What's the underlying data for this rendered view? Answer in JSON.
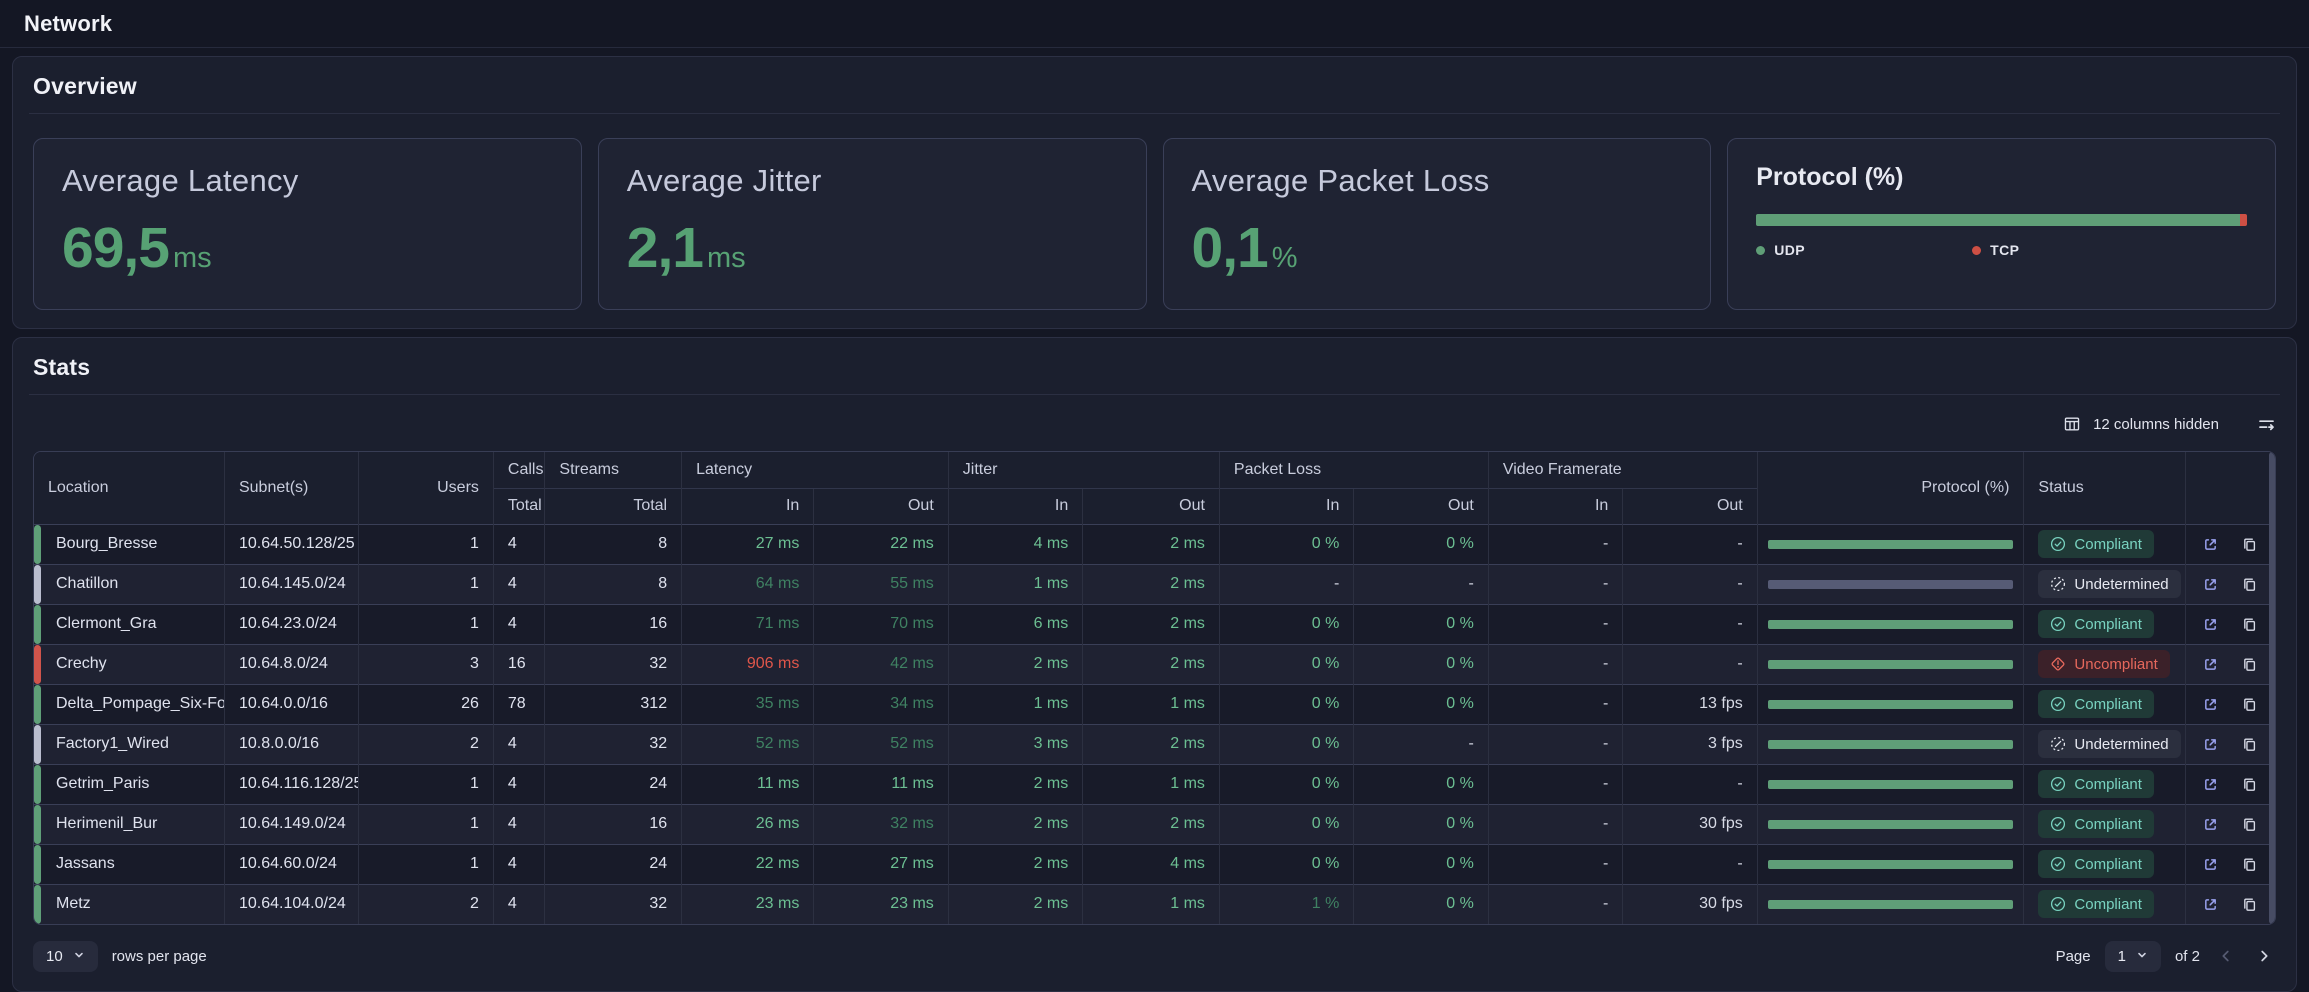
{
  "page": {
    "title": "Network"
  },
  "overview": {
    "title": "Overview",
    "metric_cards": [
      {
        "label": "Average Latency",
        "value": "69,5",
        "unit": "ms"
      },
      {
        "label": "Average Jitter",
        "value": "2,1",
        "unit": "ms"
      },
      {
        "label": "Average Packet Loss",
        "value": "0,1",
        "unit": "%"
      }
    ],
    "protocol_card": {
      "title": "Protocol (%)",
      "chart_data": {
        "type": "bar",
        "orientation": "horizontal-stacked-percentage",
        "series": [
          {
            "name": "UDP",
            "value": 98.5,
            "color": "#5f9e77"
          },
          {
            "name": "TCP",
            "value": 1.5,
            "color": "#cd4f44"
          }
        ],
        "legend_position": "bottom"
      }
    }
  },
  "stats": {
    "title": "Stats",
    "toolbar": {
      "columns_hidden": "12 columns hidden"
    },
    "table": {
      "header": {
        "groups": [
          "Location",
          "Subnet(s)",
          "Users",
          "Calls",
          "Streams",
          "Latency",
          "Jitter",
          "Packet Loss",
          "Video Framerate",
          "Protocol (%)",
          "Status"
        ],
        "sub": {
          "total": "Total",
          "in": "In",
          "out": "Out"
        }
      },
      "rows": [
        {
          "location": "Bourg_Bresse",
          "status_type": "compliant",
          "subnet": "10.64.50.128/25",
          "users": "1",
          "calls": "4",
          "streams": "8",
          "metrics": [
            [
              "27 ms",
              "ok"
            ],
            [
              "22 ms",
              "ok"
            ],
            [
              "4 ms",
              "ok"
            ],
            [
              "2 ms",
              "ok"
            ],
            [
              "0 %",
              "ok"
            ],
            [
              "0 %",
              "ok"
            ],
            [
              "-",
              "na"
            ],
            [
              "-",
              "na"
            ]
          ],
          "protocol_bar": "green",
          "status": "Compliant"
        },
        {
          "location": "Chatillon",
          "status_type": "undetermined",
          "subnet": "10.64.145.0/24",
          "users": "1",
          "calls": "4",
          "streams": "8",
          "metrics": [
            [
              "64 ms",
              "warn"
            ],
            [
              "55 ms",
              "warn"
            ],
            [
              "1 ms",
              "ok"
            ],
            [
              "2 ms",
              "ok"
            ],
            [
              "-",
              "na"
            ],
            [
              "-",
              "na"
            ],
            [
              "-",
              "na"
            ],
            [
              "-",
              "na"
            ]
          ],
          "protocol_bar": "gray",
          "status": "Undetermined"
        },
        {
          "location": "Clermont_Gra",
          "status_type": "compliant",
          "subnet": "10.64.23.0/24",
          "users": "1",
          "calls": "4",
          "streams": "16",
          "metrics": [
            [
              "71 ms",
              "warn"
            ],
            [
              "70 ms",
              "warn"
            ],
            [
              "6 ms",
              "ok"
            ],
            [
              "2 ms",
              "ok"
            ],
            [
              "0 %",
              "ok"
            ],
            [
              "0 %",
              "ok"
            ],
            [
              "-",
              "na"
            ],
            [
              "-",
              "na"
            ]
          ],
          "protocol_bar": "green",
          "status": "Compliant"
        },
        {
          "location": "Crechy",
          "status_type": "uncompliant",
          "subnet": "10.64.8.0/24",
          "users": "3",
          "calls": "16",
          "streams": "32",
          "metrics": [
            [
              "906 ms",
              "bad"
            ],
            [
              "42 ms",
              "warn"
            ],
            [
              "2 ms",
              "ok"
            ],
            [
              "2 ms",
              "ok"
            ],
            [
              "0 %",
              "ok"
            ],
            [
              "0 %",
              "ok"
            ],
            [
              "-",
              "na"
            ],
            [
              "-",
              "na"
            ]
          ],
          "protocol_bar": "green",
          "status": "Uncompliant"
        },
        {
          "location": "Delta_Pompage_Six-Four",
          "status_type": "compliant",
          "subnet": "10.64.0.0/16",
          "users": "26",
          "calls": "78",
          "streams": "312",
          "metrics": [
            [
              "35 ms",
              "warn"
            ],
            [
              "34 ms",
              "warn"
            ],
            [
              "1 ms",
              "ok"
            ],
            [
              "1 ms",
              "ok"
            ],
            [
              "0 %",
              "ok"
            ],
            [
              "0 %",
              "ok"
            ],
            [
              "-",
              "na"
            ],
            [
              "13 fps",
              "plain"
            ]
          ],
          "protocol_bar": "green",
          "status": "Compliant"
        },
        {
          "location": "Factory1_Wired",
          "status_type": "undetermined",
          "subnet": "10.8.0.0/16",
          "users": "2",
          "calls": "4",
          "streams": "32",
          "metrics": [
            [
              "52 ms",
              "warn"
            ],
            [
              "52 ms",
              "warn"
            ],
            [
              "3 ms",
              "ok"
            ],
            [
              "2 ms",
              "ok"
            ],
            [
              "0 %",
              "ok"
            ],
            [
              "-",
              "na"
            ],
            [
              "-",
              "na"
            ],
            [
              "3 fps",
              "plain"
            ]
          ],
          "protocol_bar": "green",
          "status": "Undetermined"
        },
        {
          "location": "Getrim_Paris",
          "status_type": "compliant",
          "subnet": "10.64.116.128/25",
          "users": "1",
          "calls": "4",
          "streams": "24",
          "metrics": [
            [
              "11 ms",
              "ok"
            ],
            [
              "11 ms",
              "ok"
            ],
            [
              "2 ms",
              "ok"
            ],
            [
              "1 ms",
              "ok"
            ],
            [
              "0 %",
              "ok"
            ],
            [
              "0 %",
              "ok"
            ],
            [
              "-",
              "na"
            ],
            [
              "-",
              "na"
            ]
          ],
          "protocol_bar": "green",
          "status": "Compliant"
        },
        {
          "location": "Herimenil_Bur",
          "status_type": "compliant",
          "subnet": "10.64.149.0/24",
          "users": "1",
          "calls": "4",
          "streams": "16",
          "metrics": [
            [
              "26 ms",
              "ok"
            ],
            [
              "32 ms",
              "warn"
            ],
            [
              "2 ms",
              "ok"
            ],
            [
              "2 ms",
              "ok"
            ],
            [
              "0 %",
              "ok"
            ],
            [
              "0 %",
              "ok"
            ],
            [
              "-",
              "na"
            ],
            [
              "30 fps",
              "plain"
            ]
          ],
          "protocol_bar": "green",
          "status": "Compliant"
        },
        {
          "location": "Jassans",
          "status_type": "compliant",
          "subnet": "10.64.60.0/24",
          "users": "1",
          "calls": "4",
          "streams": "24",
          "metrics": [
            [
              "22 ms",
              "ok"
            ],
            [
              "27 ms",
              "ok"
            ],
            [
              "2 ms",
              "ok"
            ],
            [
              "4 ms",
              "ok"
            ],
            [
              "0 %",
              "ok"
            ],
            [
              "0 %",
              "ok"
            ],
            [
              "-",
              "na"
            ],
            [
              "-",
              "na"
            ]
          ],
          "protocol_bar": "green",
          "status": "Compliant"
        },
        {
          "location": "Metz",
          "status_type": "compliant",
          "subnet": "10.64.104.0/24",
          "users": "2",
          "calls": "4",
          "streams": "32",
          "metrics": [
            [
              "23 ms",
              "ok"
            ],
            [
              "23 ms",
              "ok"
            ],
            [
              "2 ms",
              "ok"
            ],
            [
              "1 ms",
              "ok"
            ],
            [
              "1 %",
              "warn"
            ],
            [
              "0 %",
              "ok"
            ],
            [
              "-",
              "na"
            ],
            [
              "30 fps",
              "plain"
            ]
          ],
          "protocol_bar": "green",
          "status": "Compliant"
        }
      ]
    },
    "footer": {
      "rows_per_page_value": "10",
      "rows_per_page_label": "rows per page",
      "page_label": "Page",
      "page_value": "1",
      "of_label": "of 2"
    }
  },
  "colors": {
    "value_green": "#57a274",
    "cell_green": "#6cbf92",
    "cell_dim_green": "#3f8162",
    "cell_red": "#e0564a",
    "udp_green": "#5f9e77",
    "tcp_red": "#cd4f44",
    "indicator_gray": "#b9bdce"
  }
}
